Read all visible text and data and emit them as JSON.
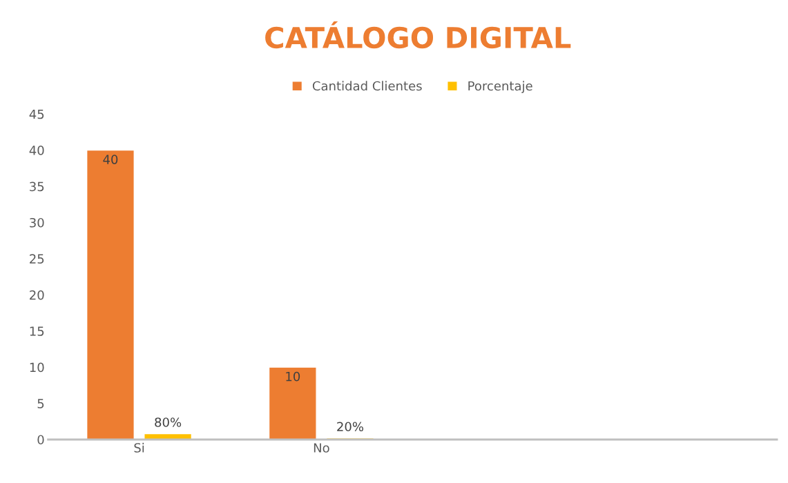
{
  "chart_data": {
    "type": "bar",
    "title": "CATÁLOGO DIGITAL",
    "categories": [
      "Si",
      "No",
      null,
      null
    ],
    "series": [
      {
        "name": "Cantidad Clientes",
        "color": "#ed7d31",
        "values": [
          40,
          10,
          null,
          null
        ],
        "value_labels": [
          "40",
          "10",
          null,
          null
        ]
      },
      {
        "name": "Porcentaje",
        "color": "#ffc000",
        "values": [
          0.8,
          0.2,
          null,
          null
        ],
        "value_labels": [
          "80%",
          "20%",
          null,
          null
        ]
      }
    ],
    "ylim": [
      0,
      45
    ],
    "yticks": [
      0,
      5,
      10,
      15,
      20,
      25,
      30,
      35,
      40,
      45
    ],
    "grid": false,
    "legend": "top"
  }
}
